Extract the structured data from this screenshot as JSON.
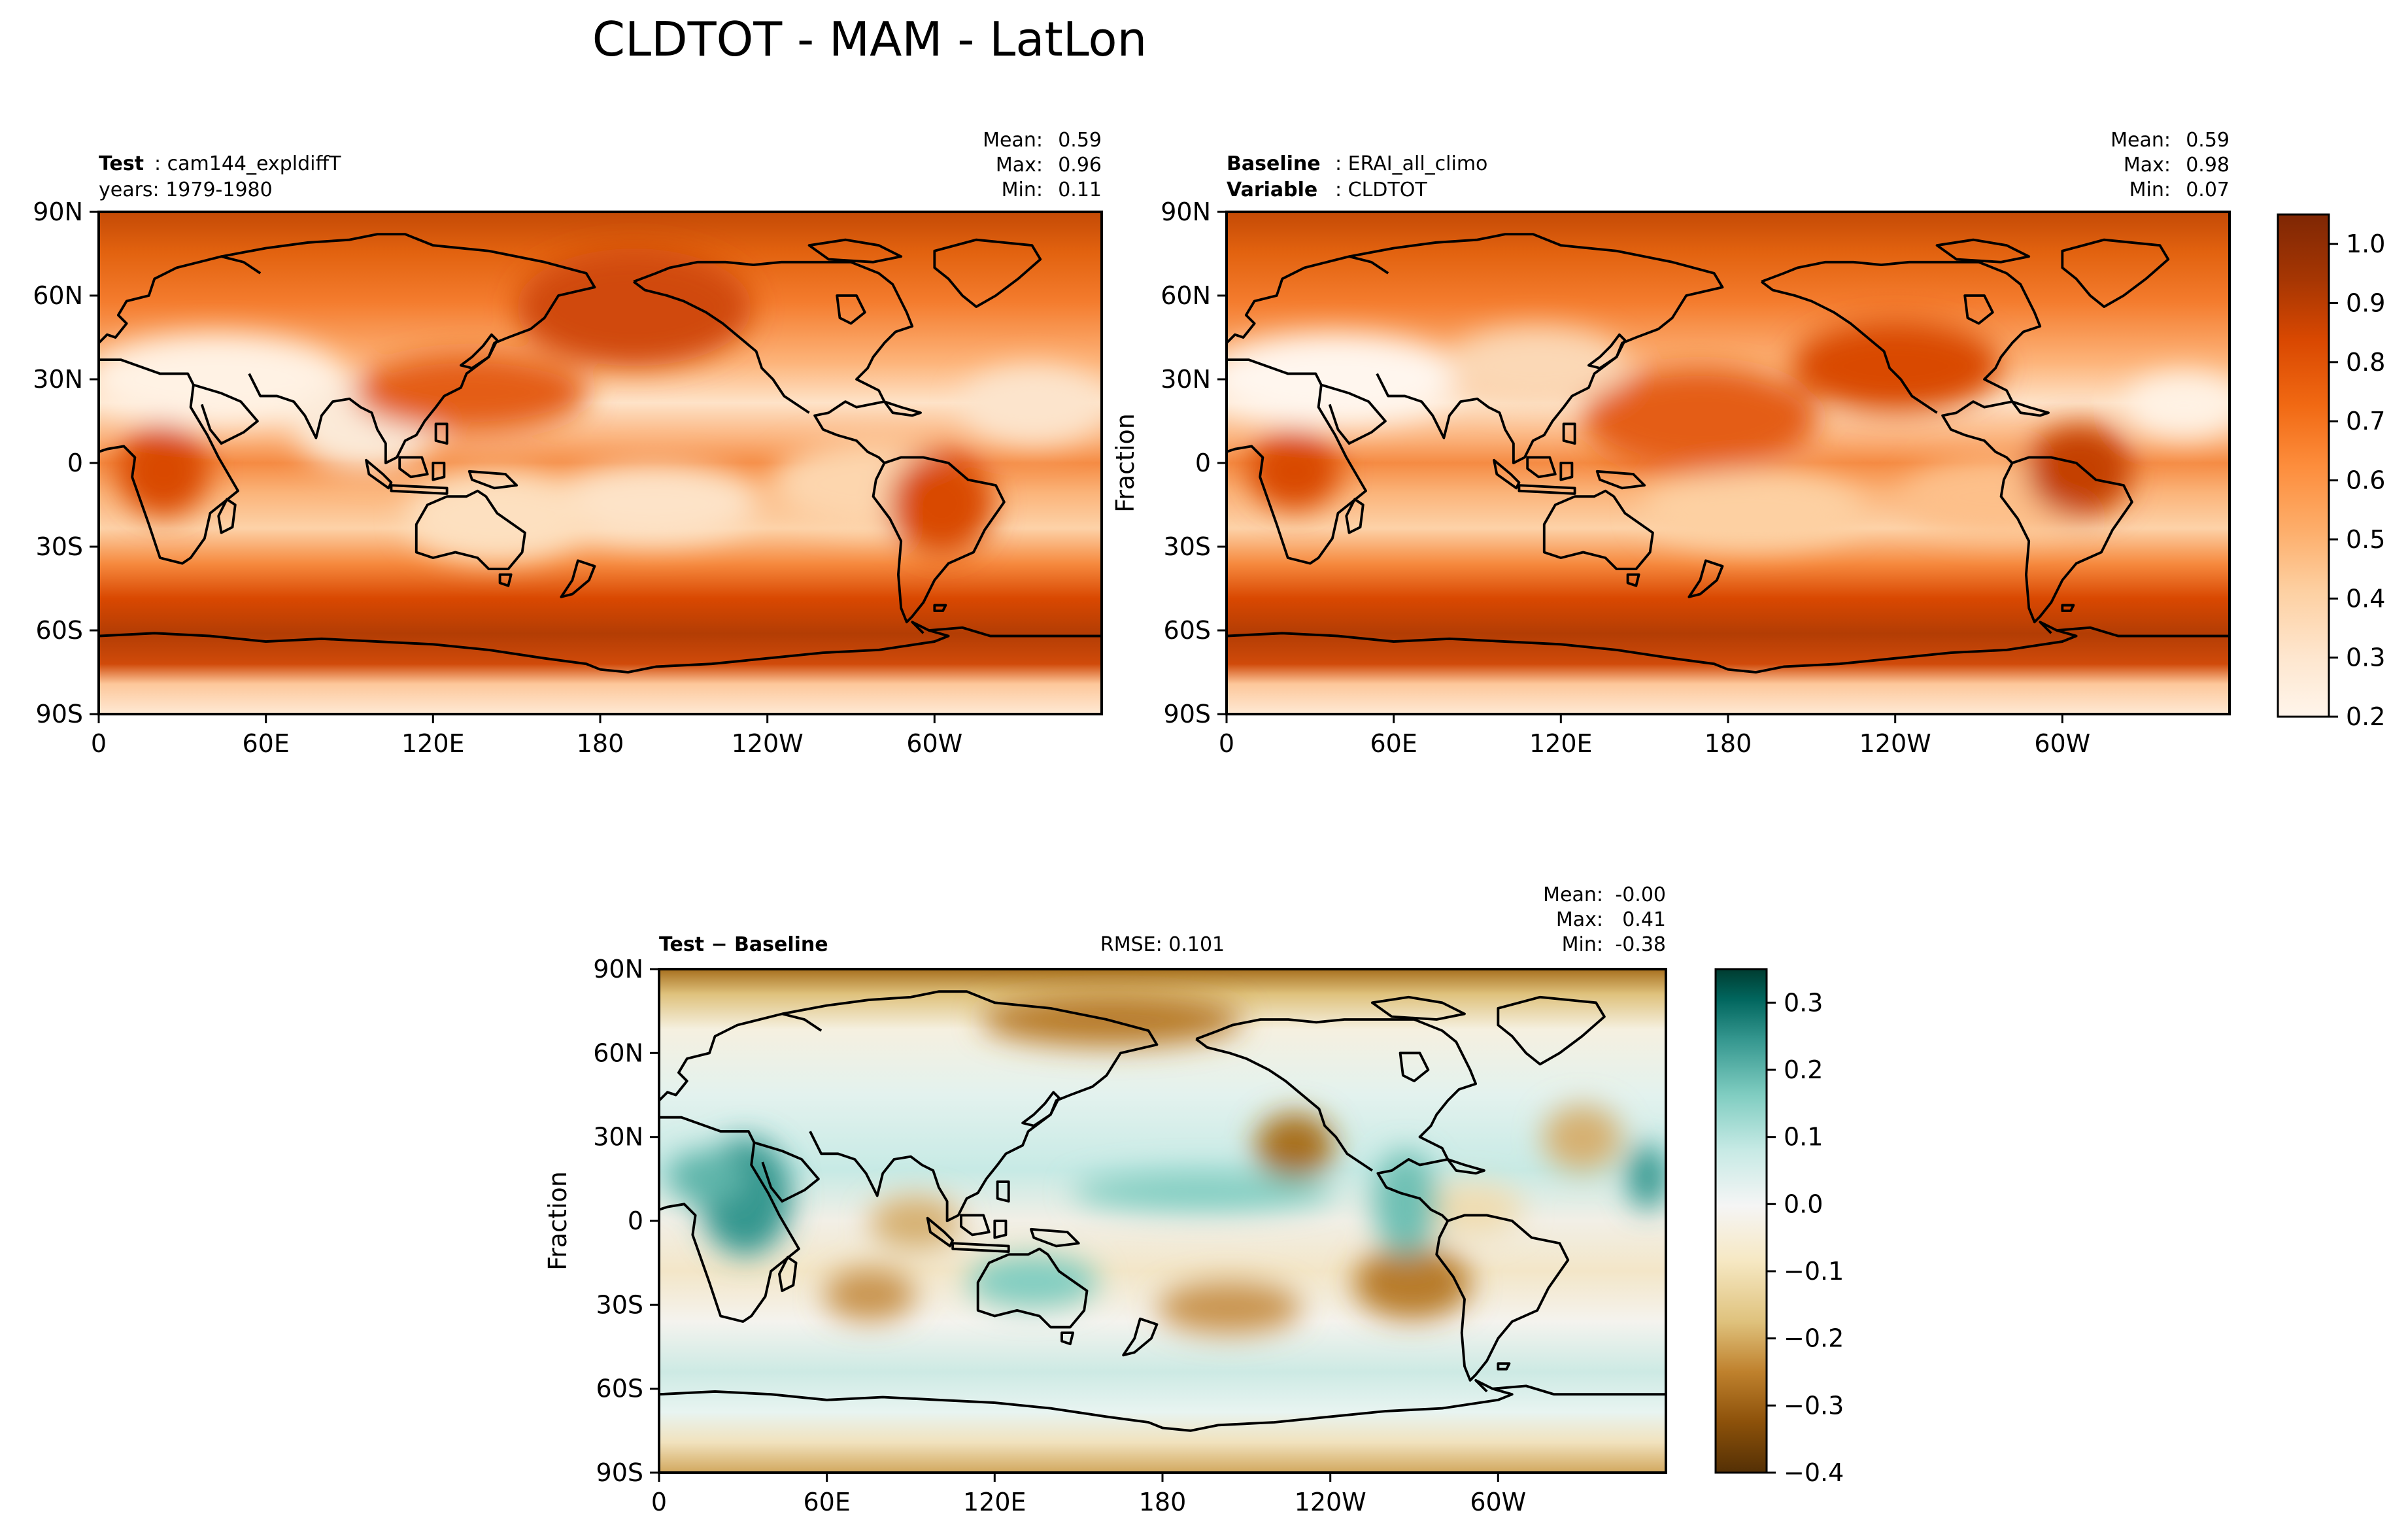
{
  "figure_title": "CLDTOT - MAM - LatLon",
  "colors": {
    "sequential": [
      "#fff5eb",
      "#fee6ce",
      "#fdd0a2",
      "#fdae6b",
      "#fd8d3c",
      "#f16913",
      "#d94801",
      "#a63603",
      "#7f2704"
    ],
    "diverging": [
      "#543005",
      "#8c510a",
      "#bf812d",
      "#dfc27d",
      "#f6e8c3",
      "#f5f5f5",
      "#c7eae5",
      "#80cdc1",
      "#35978f",
      "#01665e",
      "#003c30"
    ],
    "coastline": "#000000"
  },
  "chart_data": [
    {
      "type": "heatmap",
      "panel": "test",
      "title_lines": [
        {
          "bold": "Test",
          "text": ": cam144_expldiffT"
        },
        {
          "bold": "",
          "text": "years: 1979-1980"
        }
      ],
      "stats": [
        {
          "label": "Mean:",
          "value": "0.59"
        },
        {
          "label": "Max:",
          "value": "0.96"
        },
        {
          "label": "Min:",
          "value": "0.11"
        }
      ],
      "ylabel": "",
      "xticks": [
        "0",
        "60E",
        "120E",
        "180",
        "120W",
        "60W"
      ],
      "yticks": [
        "90N",
        "60N",
        "30N",
        "0",
        "30S",
        "60S",
        "90S"
      ],
      "xlim": [
        0,
        360
      ],
      "ylim": [
        -90,
        90
      ],
      "colorscale": "Oranges",
      "approx_field": {
        "mean": 0.59,
        "max": 0.96,
        "min": 0.11
      }
    },
    {
      "type": "heatmap",
      "panel": "baseline",
      "title_lines": [
        {
          "bold": "Baseline",
          "text": ": ERAI_all_climo"
        },
        {
          "bold": "Variable",
          "text": ": CLDTOT"
        }
      ],
      "stats": [
        {
          "label": "Mean:",
          "value": "0.59"
        },
        {
          "label": "Max:",
          "value": "0.98"
        },
        {
          "label": "Min:",
          "value": "0.07"
        }
      ],
      "ylabel": "Fraction",
      "xticks": [
        "0",
        "60E",
        "120E",
        "180",
        "120W",
        "60W"
      ],
      "yticks": [
        "90N",
        "60N",
        "30N",
        "0",
        "30S",
        "60S",
        "90S"
      ],
      "xlim": [
        0,
        360
      ],
      "ylim": [
        -90,
        90
      ],
      "colorscale": "Oranges",
      "approx_field": {
        "mean": 0.59,
        "max": 0.98,
        "min": 0.07
      }
    },
    {
      "type": "heatmap",
      "panel": "difference",
      "title_lines": [
        {
          "bold": "Test − Baseline",
          "text": ""
        }
      ],
      "center_title": "RMSE: 0.101",
      "stats": [
        {
          "label": "Mean:",
          "value": "-0.00"
        },
        {
          "label": "Max:",
          "value": "0.41"
        },
        {
          "label": "Min:",
          "value": "-0.38"
        }
      ],
      "ylabel": "Fraction",
      "xticks": [
        "0",
        "60E",
        "120E",
        "180",
        "120W",
        "60W"
      ],
      "yticks": [
        "90N",
        "60N",
        "30N",
        "0",
        "30S",
        "60S",
        "90S"
      ],
      "xlim": [
        0,
        360
      ],
      "ylim": [
        -90,
        90
      ],
      "colorscale": "BrBG",
      "approx_field": {
        "mean": 0.0,
        "max": 0.41,
        "min": -0.38
      }
    }
  ],
  "colorbars": [
    {
      "id": "top",
      "range": [
        0.2,
        1.05
      ],
      "ticks": [
        "0.2",
        "0.3",
        "0.4",
        "0.5",
        "0.6",
        "0.7",
        "0.8",
        "0.9",
        "1.0"
      ]
    },
    {
      "id": "diff",
      "range": [
        -0.4,
        0.35
      ],
      "ticks": [
        "−0.4",
        "−0.3",
        "−0.2",
        "−0.1",
        "0.0",
        "0.1",
        "0.2",
        "0.3"
      ]
    }
  ]
}
